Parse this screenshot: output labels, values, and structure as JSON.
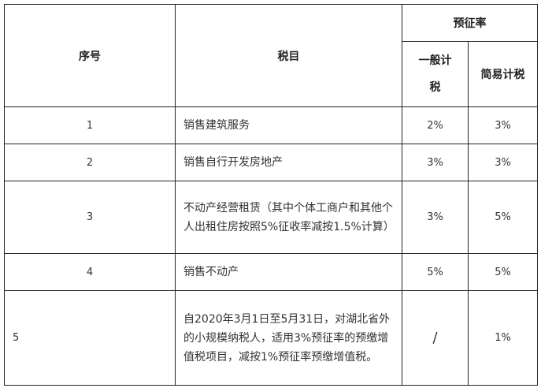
{
  "header": {
    "seq": "序号",
    "item": "税目",
    "rate_group": "预征率",
    "general": "一般计税",
    "simple": "简易计税"
  },
  "rows": [
    {
      "seq": "1",
      "item": "销售建筑服务",
      "general": "2%",
      "simple": "3%"
    },
    {
      "seq": "2",
      "item": "销售自行开发房地产",
      "general": "3%",
      "simple": "3%"
    },
    {
      "seq": "3",
      "item": "不动产经营租赁（其中个体工商户和其他个人出租住房按照5%征收率减按1.5%计算）",
      "general": "3%",
      "simple": "5%"
    },
    {
      "seq": "4",
      "item": "销售不动产",
      "general": "5%",
      "simple": "5%"
    },
    {
      "seq": "5",
      "item": "自2020年3月1日至5月31日，对湖北省外的小规模纳税人，适用3%预征率的预缴增值税项目，减按1%预征率预缴增值税。",
      "general": "/",
      "simple": "1%"
    }
  ]
}
